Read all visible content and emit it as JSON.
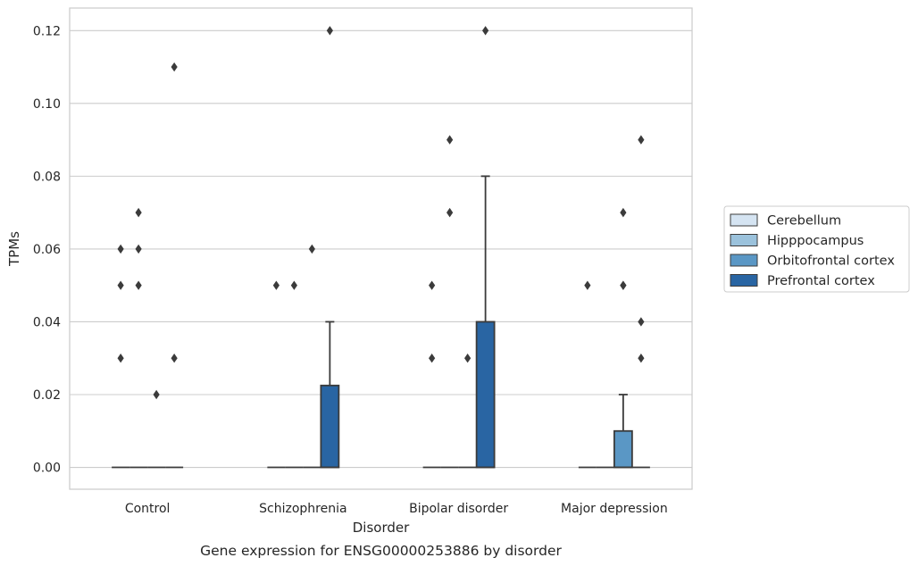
{
  "chart_data": {
    "type": "box",
    "caption": "Gene expression for ENSG00000253886 by disorder",
    "xlabel": "Disorder",
    "ylabel": "TPMs",
    "ylim": [
      -0.006,
      0.1262
    ],
    "yticks": [
      "0.00",
      "0.02",
      "0.04",
      "0.06",
      "0.08",
      "0.10",
      "0.12"
    ],
    "ytick_values": [
      0,
      0.02,
      0.04,
      0.06,
      0.08,
      0.1,
      0.12
    ],
    "grid": true,
    "legend_position": "right",
    "categories": [
      "Control",
      "Schizophrenia",
      "Bipolar disorder",
      "Major depression"
    ],
    "series": [
      {
        "name": "Cerebellum",
        "color": "#d5e4f2"
      },
      {
        "name": "Hipppocampus",
        "color": "#9bc2dc"
      },
      {
        "name": "Orbitofrontal cortex",
        "color": "#5a97c5"
      },
      {
        "name": "Prefrontal cortex",
        "color": "#2965a3"
      }
    ],
    "boxes": [
      {
        "category": 0,
        "series": 0,
        "q1": 0,
        "median": 0,
        "q3": 0,
        "whisker_low": 0,
        "whisker_high": 0,
        "outliers": [
          0.03,
          0.05,
          0.06
        ]
      },
      {
        "category": 0,
        "series": 1,
        "q1": 0,
        "median": 0,
        "q3": 0,
        "whisker_low": 0,
        "whisker_high": 0,
        "outliers": [
          0.05,
          0.06,
          0.07
        ]
      },
      {
        "category": 0,
        "series": 2,
        "q1": 0,
        "median": 0,
        "q3": 0,
        "whisker_low": 0,
        "whisker_high": 0,
        "outliers": [
          0.02
        ]
      },
      {
        "category": 0,
        "series": 3,
        "q1": 0,
        "median": 0,
        "q3": 0,
        "whisker_low": 0,
        "whisker_high": 0,
        "outliers": [
          0.03,
          0.11
        ]
      },
      {
        "category": 1,
        "series": 0,
        "q1": 0,
        "median": 0,
        "q3": 0,
        "whisker_low": 0,
        "whisker_high": 0,
        "outliers": [
          0.05
        ]
      },
      {
        "category": 1,
        "series": 1,
        "q1": 0,
        "median": 0,
        "q3": 0,
        "whisker_low": 0,
        "whisker_high": 0,
        "outliers": [
          0.05
        ]
      },
      {
        "category": 1,
        "series": 2,
        "q1": 0,
        "median": 0,
        "q3": 0,
        "whisker_low": 0,
        "whisker_high": 0,
        "outliers": [
          0.06
        ]
      },
      {
        "category": 1,
        "series": 3,
        "q1": 0,
        "median": 0,
        "q3": 0.0225,
        "whisker_low": 0,
        "whisker_high": 0.04,
        "outliers": [
          0.12
        ]
      },
      {
        "category": 2,
        "series": 0,
        "q1": 0,
        "median": 0,
        "q3": 0,
        "whisker_low": 0,
        "whisker_high": 0,
        "outliers": [
          0.03,
          0.05
        ]
      },
      {
        "category": 2,
        "series": 1,
        "q1": 0,
        "median": 0,
        "q3": 0,
        "whisker_low": 0,
        "whisker_high": 0,
        "outliers": [
          0.07,
          0.09
        ]
      },
      {
        "category": 2,
        "series": 2,
        "q1": 0,
        "median": 0,
        "q3": 0,
        "whisker_low": 0,
        "whisker_high": 0,
        "outliers": [
          0.03
        ]
      },
      {
        "category": 2,
        "series": 3,
        "q1": 0,
        "median": 0,
        "q3": 0.04,
        "whisker_low": 0,
        "whisker_high": 0.08,
        "outliers": [
          0.12
        ]
      },
      {
        "category": 3,
        "series": 0,
        "q1": 0,
        "median": 0,
        "q3": 0,
        "whisker_low": 0,
        "whisker_high": 0,
        "outliers": [
          0.05
        ]
      },
      {
        "category": 3,
        "series": 1,
        "q1": 0,
        "median": 0,
        "q3": 0,
        "whisker_low": 0,
        "whisker_high": 0,
        "outliers": []
      },
      {
        "category": 3,
        "series": 2,
        "q1": 0,
        "median": 0,
        "q3": 0.01,
        "whisker_low": 0,
        "whisker_high": 0.02,
        "outliers": [
          0.05,
          0.05,
          0.07
        ]
      },
      {
        "category": 3,
        "series": 3,
        "q1": 0,
        "median": 0,
        "q3": 0,
        "whisker_low": 0,
        "whisker_high": 0,
        "outliers": [
          0.03,
          0.04,
          0.09
        ]
      }
    ]
  }
}
